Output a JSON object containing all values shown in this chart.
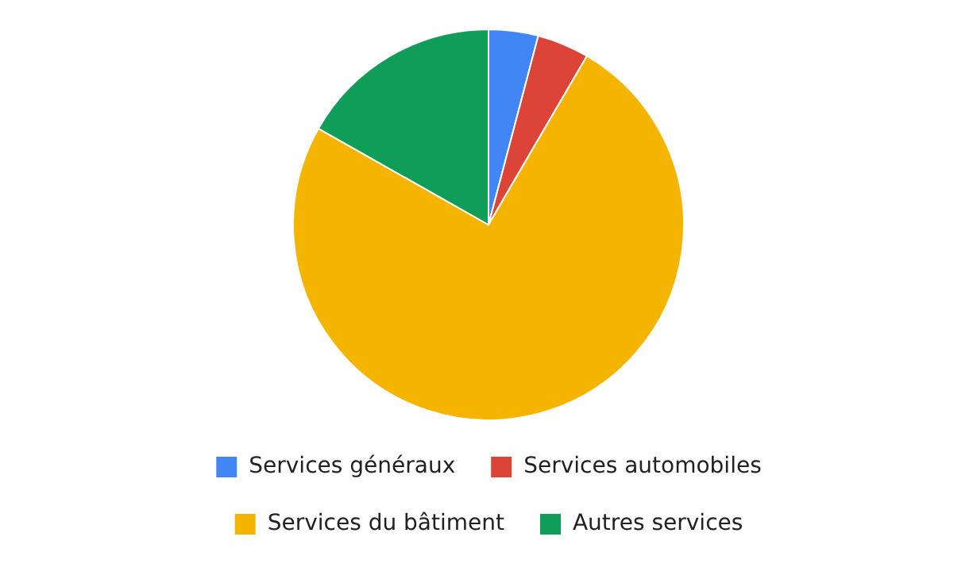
{
  "chart_data": {
    "type": "pie",
    "categories": [
      "Services généraux",
      "Services automobiles",
      "Services du bâtiment",
      "Autres services"
    ],
    "values": [
      4.1,
      4.3,
      74.8,
      16.8
    ],
    "colors": [
      "#4285f4",
      "#db4437",
      "#f4b400",
      "#0f9d58"
    ],
    "legend": "bottom"
  }
}
